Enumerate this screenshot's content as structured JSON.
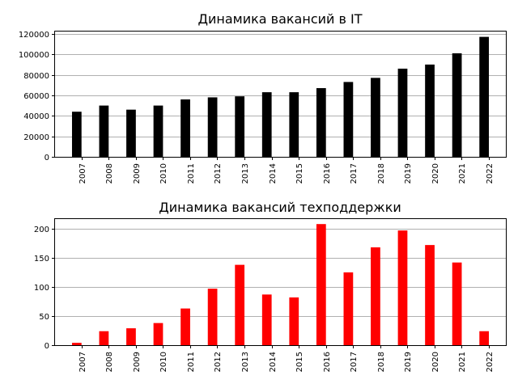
{
  "chart_data": [
    {
      "type": "bar",
      "title": "Динамика  вакансий в IT",
      "xlabel": "",
      "ylabel": "",
      "categories": [
        "2007",
        "2008",
        "2009",
        "2010",
        "2011",
        "2012",
        "2013",
        "2014",
        "2015",
        "2016",
        "2017",
        "2018",
        "2019",
        "2020",
        "2021",
        "2022"
      ],
      "values": [
        44000,
        50000,
        46000,
        50000,
        56000,
        58000,
        59000,
        63000,
        63000,
        67000,
        73000,
        77000,
        86000,
        90000,
        101000,
        117000
      ],
      "ylim": [
        0,
        123000
      ],
      "yticks": [
        0,
        20000,
        40000,
        60000,
        80000,
        100000,
        120000
      ],
      "ytick_labels": [
        "0",
        "20000",
        "40000",
        "60000",
        "80000",
        "100000",
        "120000"
      ],
      "grid": "horizontal",
      "bar_color": "#000000"
    },
    {
      "type": "bar",
      "title": "Динамика  вакансий техподдержки",
      "xlabel": "",
      "ylabel": "",
      "categories": [
        "2007",
        "2008",
        "2009",
        "2010",
        "2011",
        "2012",
        "2013",
        "2014",
        "2015",
        "2016",
        "2017",
        "2018",
        "2019",
        "2020",
        "2021",
        "2022"
      ],
      "values": [
        4,
        24,
        29,
        38,
        63,
        97,
        138,
        87,
        82,
        208,
        125,
        168,
        197,
        172,
        142,
        24
      ],
      "ylim": [
        0,
        218
      ],
      "yticks": [
        0,
        50,
        100,
        150,
        200
      ],
      "ytick_labels": [
        "0",
        "50",
        "100",
        "150",
        "200"
      ],
      "grid": "horizontal",
      "bar_color": "#ff0000"
    }
  ]
}
